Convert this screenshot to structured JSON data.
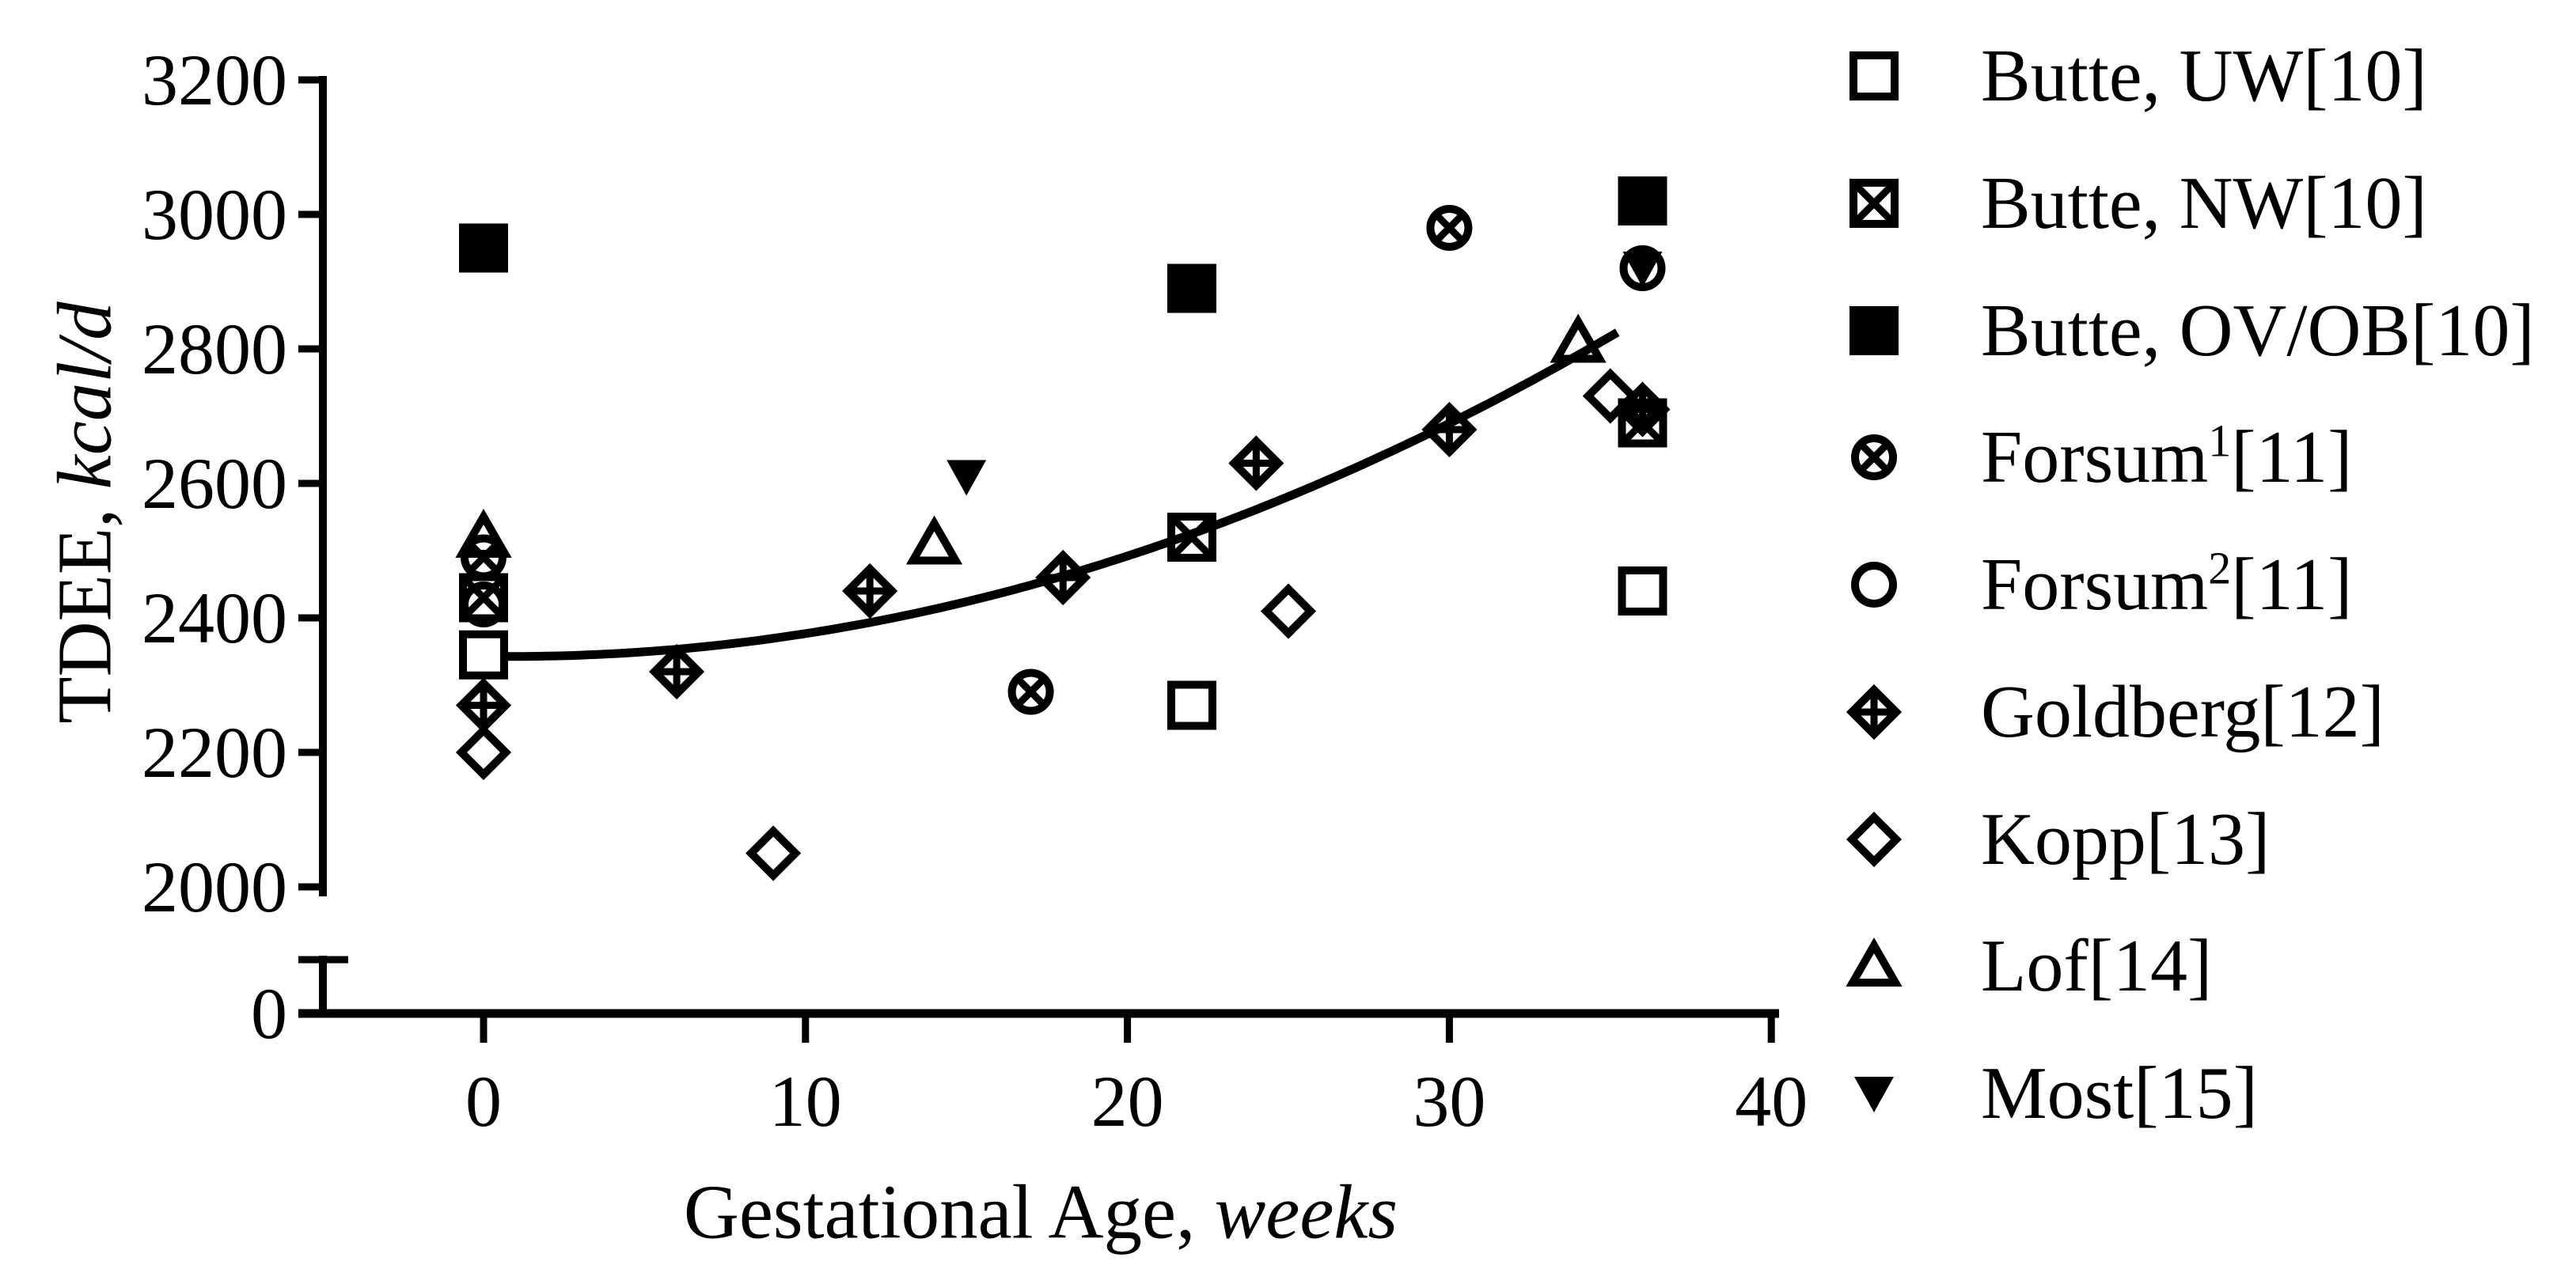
{
  "figure": {
    "background_color": "#ffffff",
    "ink_color": "#000000"
  },
  "axes": {
    "y": {
      "title_text": "TDEE,",
      "title_unit": "kcal/d"
    },
    "x": {
      "title_text": "Gestational Age,",
      "title_unit": "weeks"
    }
  },
  "chart_data": {
    "type": "scatter",
    "title": "",
    "xlabel": "Gestational Age, weeks",
    "ylabel": "TDEE, kcal/d",
    "x_ticks": [
      0,
      10,
      20,
      30,
      40
    ],
    "y_ticks": [
      3200,
      3000,
      2800,
      2600,
      2400,
      2200,
      2000
    ],
    "y_zero_tick": 0,
    "y_axis_break": true,
    "xlim": [
      -5.7,
      40.3
    ],
    "ylim_main": [
      2000,
      3200
    ],
    "grid": false,
    "legend_position": "right",
    "series": [
      {
        "name": "Butte, UW[10]",
        "marker": "square-open",
        "points": [
          [
            0,
            2345
          ],
          [
            22,
            2270
          ],
          [
            36,
            2440
          ]
        ]
      },
      {
        "name": "Butte, NW[10]",
        "marker": "square-x",
        "points": [
          [
            0,
            2430
          ],
          [
            22,
            2520
          ],
          [
            36,
            2690
          ]
        ]
      },
      {
        "name": "Butte, OV/OB[10]",
        "marker": "square-filled",
        "points": [
          [
            0,
            2950
          ],
          [
            22,
            2890
          ],
          [
            36,
            3020
          ]
        ]
      },
      {
        "name": "Forsum1[11]",
        "marker": "circle-x",
        "points": [
          [
            0,
            2490
          ],
          [
            17,
            2290
          ],
          [
            30,
            2980
          ]
        ]
      },
      {
        "name": "Forsum2[11]",
        "marker": "circle-open",
        "points": [
          [
            0,
            2420
          ],
          [
            36,
            2920
          ]
        ]
      },
      {
        "name": "Goldberg[12]",
        "marker": "diamond-plus",
        "points": [
          [
            0,
            2270
          ],
          [
            6,
            2320
          ],
          [
            12,
            2440
          ],
          [
            18,
            2460
          ],
          [
            24,
            2630
          ],
          [
            30,
            2680
          ],
          [
            36,
            2710
          ]
        ]
      },
      {
        "name": "Kopp[13]",
        "marker": "diamond-open",
        "points": [
          [
            0,
            2200
          ],
          [
            9,
            2050
          ],
          [
            25,
            2410
          ],
          [
            35,
            2730
          ]
        ]
      },
      {
        "name": "Lof[14]",
        "marker": "triangle-open",
        "points": [
          [
            0,
            2520
          ],
          [
            14,
            2510
          ],
          [
            34,
            2810
          ]
        ]
      },
      {
        "name": "Most[15]",
        "marker": "triangle-down-filled",
        "points": [
          [
            15,
            2610
          ],
          [
            36,
            2920
          ]
        ]
      }
    ],
    "trend_curve": {
      "form": "quadratic_kcal_vs_week",
      "a": 2343,
      "b": -0.73,
      "c": 0.409,
      "w_start": 0.72,
      "w_end": 35.4
    }
  },
  "legend": {
    "entries": [
      {
        "marker": "square-open",
        "pre": "Butte, UW[10]",
        "sup": "",
        "post": ""
      },
      {
        "marker": "square-x",
        "pre": "Butte, NW[10]",
        "sup": "",
        "post": ""
      },
      {
        "marker": "square-filled",
        "pre": "Butte, OV/OB[10]",
        "sup": "",
        "post": ""
      },
      {
        "marker": "circle-x",
        "pre": "Forsum",
        "sup": "1",
        "post": "[11]"
      },
      {
        "marker": "circle-open",
        "pre": "Forsum",
        "sup": "2",
        "post": "[11]"
      },
      {
        "marker": "diamond-plus",
        "pre": "Goldberg[12]",
        "sup": "",
        "post": ""
      },
      {
        "marker": "diamond-open",
        "pre": "Kopp[13]",
        "sup": "",
        "post": ""
      },
      {
        "marker": "triangle-open",
        "pre": "Lof[14]",
        "sup": "",
        "post": ""
      },
      {
        "marker": "triangle-down-filled",
        "pre": "Most[15]",
        "sup": "",
        "post": ""
      }
    ]
  }
}
